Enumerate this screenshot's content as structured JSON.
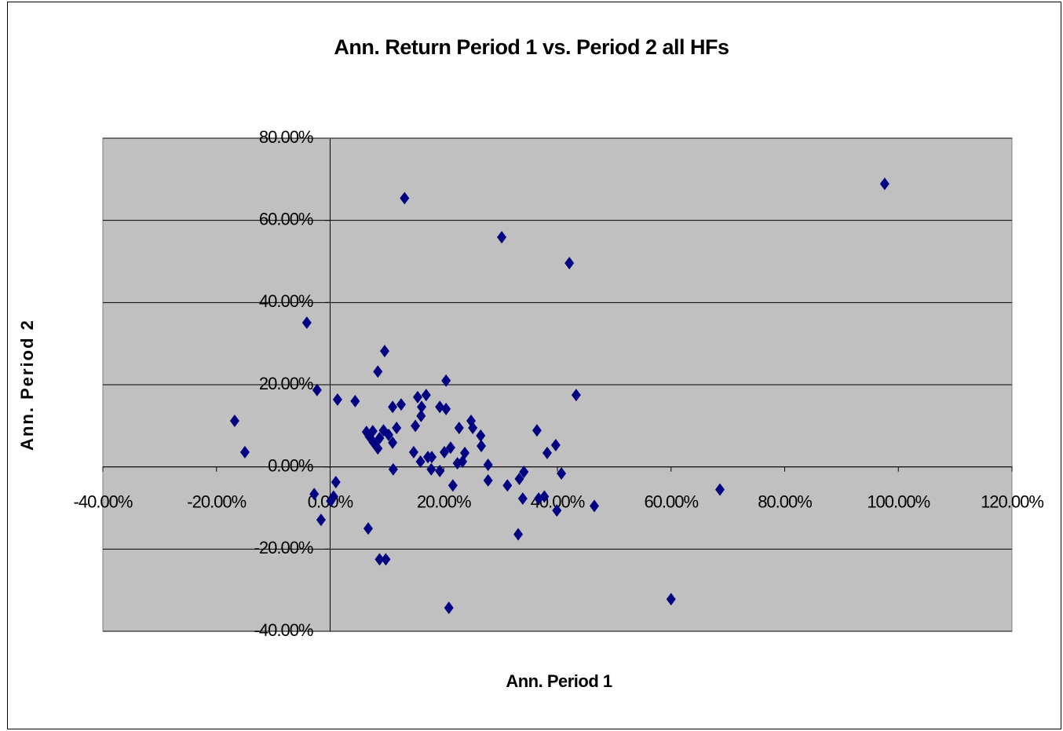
{
  "chart_data": {
    "type": "scatter",
    "title": "Ann. Return Period 1 vs. Period 2 all HFs",
    "x_label": "Ann. Period 1",
    "y_label": "Ann. Period 2",
    "color": "#000080",
    "plot_background": "#c0c0c0",
    "grid": true,
    "x": [
      97.6,
      13.1,
      30.2,
      42.1,
      -4.1,
      9.6,
      8.4,
      20.4,
      -2.3,
      43.3,
      1.3,
      4.4,
      16.9,
      15.4,
      12.5,
      11.0,
      16.1,
      19.3,
      20.4,
      16.0,
      -16.8,
      24.8,
      25.1,
      22.7,
      11.7,
      15.0,
      36.4,
      26.5,
      6.4,
      7.5,
      9.4,
      10.3,
      6.9,
      8.7,
      11.0,
      7.6,
      8.4,
      26.6,
      39.7,
      21.2,
      -15.0,
      14.7,
      20.1,
      23.7,
      38.2,
      17.9,
      17.2,
      15.9,
      23.3,
      22.4,
      27.8,
      17.8,
      19.3,
      11.1,
      34.1,
      40.7,
      27.8,
      33.3,
      1.0,
      21.6,
      31.2,
      68.6,
      -2.8,
      0.6,
      37.7,
      33.9,
      36.7,
      0.1,
      46.5,
      39.9,
      -1.6,
      6.7,
      33.1,
      8.7,
      9.8,
      60.0,
      20.9
    ],
    "values": [
      68.9,
      65.4,
      55.9,
      49.6,
      35.1,
      28.2,
      23.2,
      21.0,
      18.7,
      17.5,
      16.4,
      16.0,
      17.5,
      17.0,
      15.2,
      14.6,
      14.6,
      14.6,
      14.1,
      12.4,
      11.2,
      11.2,
      9.5,
      9.5,
      9.5,
      10.0,
      8.9,
      7.6,
      8.5,
      8.7,
      8.9,
      7.8,
      7.4,
      7.0,
      5.9,
      6.0,
      4.5,
      5.1,
      5.3,
      4.7,
      3.6,
      3.6,
      3.6,
      3.4,
      3.4,
      2.4,
      2.4,
      1.3,
      1.3,
      0.9,
      0.5,
      -0.6,
      -1.0,
      -0.6,
      -1.2,
      -1.6,
      -3.3,
      -2.9,
      -3.7,
      -4.5,
      -4.5,
      -5.5,
      -6.6,
      -7.2,
      -7.2,
      -7.7,
      -7.7,
      -8.3,
      -9.5,
      -10.6,
      -12.9,
      -15.0,
      -16.4,
      -22.5,
      -22.5,
      -32.2,
      -34.3
    ],
    "xlim": [
      -40,
      120
    ],
    "ylim": [
      -40,
      80
    ],
    "xticks": [
      {
        "value": -40,
        "label": "-40.00%"
      },
      {
        "value": -20,
        "label": "-20.00%"
      },
      {
        "value": 0,
        "label": "0.00%"
      },
      {
        "value": 20,
        "label": "20.00%"
      },
      {
        "value": 40,
        "label": "40.00%"
      },
      {
        "value": 60,
        "label": "60.00%"
      },
      {
        "value": 80,
        "label": "80.00%"
      },
      {
        "value": 100,
        "label": "100.00%"
      },
      {
        "value": 120,
        "label": "120.00%"
      }
    ],
    "yticks": [
      {
        "value": -40,
        "label": "-40.00%"
      },
      {
        "value": -20,
        "label": "-20.00%"
      },
      {
        "value": 0,
        "label": "0.00%"
      },
      {
        "value": 20,
        "label": "20.00%"
      },
      {
        "value": 40,
        "label": "40.00%"
      },
      {
        "value": 60,
        "label": "60.00%"
      },
      {
        "value": 80,
        "label": "80.00%"
      }
    ]
  }
}
